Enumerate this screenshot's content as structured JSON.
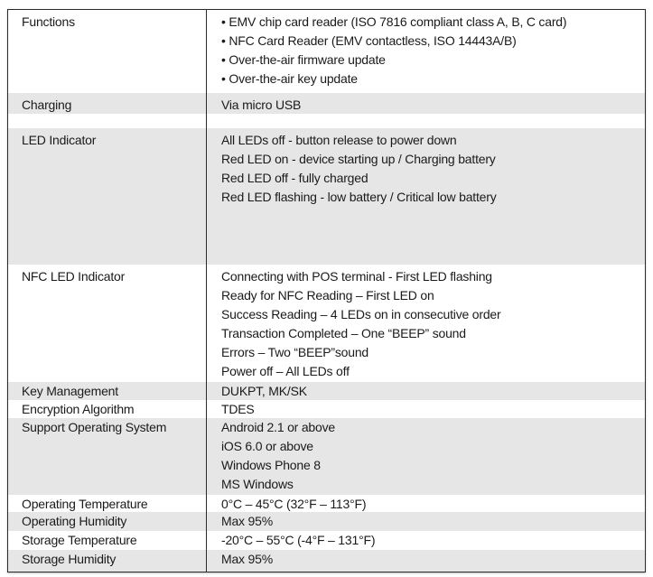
{
  "rows": [
    {
      "label": "Functions",
      "values": [
        "• EMV chip card reader (ISO 7816 compliant class A, B, C card)",
        "• NFC Card Reader (EMV contactless, ISO 14443A/B)",
        "• Over-the-air firmware update",
        "• Over-the-air key update"
      ]
    },
    {
      "label": "Charging",
      "values": [
        "Via micro USB"
      ]
    },
    {
      "label": "",
      "values": []
    },
    {
      "label": "LED Indicator",
      "values": [
        "All LEDs off - button release to power down",
        "Red LED on - device starting up / Charging battery",
        "Red LED off - fully charged",
        "Red LED flashing - low battery / Critical low battery"
      ]
    },
    {
      "label": "NFC LED Indicator",
      "values": [
        "Connecting with POS terminal - First LED flashing",
        "Ready for NFC Reading – First LED on",
        "Success Reading – 4 LEDs on in consecutive order",
        "Transaction Completed – One “BEEP” sound",
        "Errors – Two “BEEP”sound",
        "Power off – All LEDs off"
      ]
    },
    {
      "label": "Key Management",
      "values": [
        "DUKPT, MK/SK"
      ]
    },
    {
      "label": "Encryption Algorithm",
      "values": [
        "TDES"
      ]
    },
    {
      "label": "Support Operating System",
      "values": [
        "Android 2.1 or above",
        "iOS 6.0 or above",
        "Windows Phone 8",
        "MS Windows"
      ]
    },
    {
      "label": "Operating Temperature",
      "values": [
        "0°C – 45°C (32°F – 113°F)"
      ]
    },
    {
      "label": "Operating Humidity",
      "values": [
        "Max 95%"
      ]
    },
    {
      "label": "Storage Temperature",
      "values": [
        "-20°C – 55°C (-4°F – 131°F)"
      ]
    },
    {
      "label": "Storage Humidity",
      "values": [
        "Max 95%"
      ]
    }
  ],
  "colors": {
    "shaded_row": "#e6e6e6",
    "border": "#2b2b2b"
  }
}
